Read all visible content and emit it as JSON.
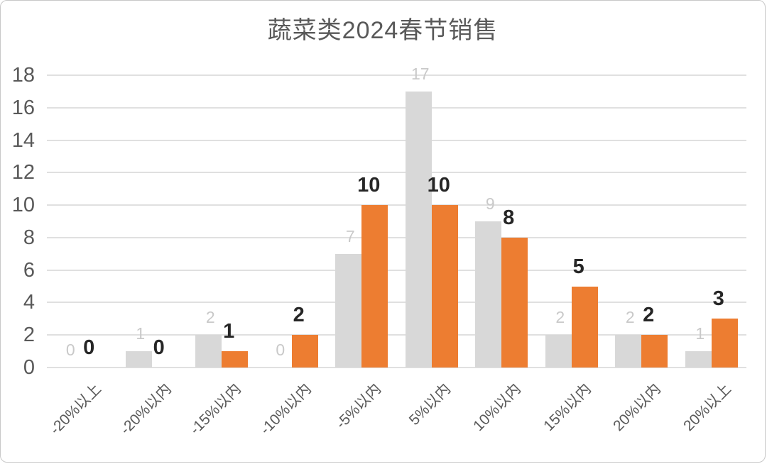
{
  "title": "蔬菜类2024春节销售",
  "chart_data": {
    "type": "bar",
    "title": "蔬菜类2024春节销售",
    "categories": [
      "-20%以上",
      "-20%以内",
      "-15%以内",
      "-10%以内",
      "-5%以内",
      "5%以内",
      "10%以内",
      "15%以内",
      "20%以内",
      "20%以上"
    ],
    "series": [
      {
        "name": "gray-series",
        "color": "#d8d8d8",
        "label_color": "#c9c9c9",
        "label_weight": "normal",
        "label_size": 23,
        "values": [
          0,
          1,
          2,
          0,
          7,
          17,
          9,
          2,
          2,
          1
        ]
      },
      {
        "name": "orange-series",
        "color": "#ed7d31",
        "label_color": "#262626",
        "label_weight": "bold",
        "label_size": 29,
        "values": [
          0,
          0,
          1,
          2,
          10,
          10,
          8,
          5,
          2,
          3
        ]
      }
    ],
    "xlabel": "",
    "ylabel": "",
    "ylim": [
      0,
      18
    ],
    "ytick_step": 2,
    "yticks": [
      "0",
      "2",
      "4",
      "6",
      "8",
      "10",
      "12",
      "14",
      "16",
      "18"
    ],
    "grid": true,
    "legend_position": "none",
    "data_labels": true
  },
  "colors": {
    "axis_text": "#595959",
    "grid": "#e0e0e0",
    "frame_border": "#c8c8c8",
    "background": "#ffffff",
    "bar_gray": "#d8d8d8",
    "bar_orange": "#ed7d31",
    "label_gray": "#c9c9c9",
    "label_black": "#262626"
  }
}
